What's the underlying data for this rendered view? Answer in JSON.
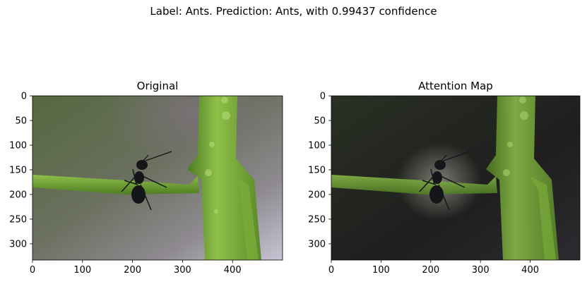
{
  "suptitle": "Label: Ants. Prediction: Ants, with 0.99437 confidence",
  "chart_data": [
    {
      "type": "image",
      "title": "Original",
      "image_width": 500,
      "image_height": 333,
      "xlim": [
        0,
        500
      ],
      "ylim": [
        333,
        0
      ],
      "xticks": [
        0,
        100,
        200,
        300,
        400
      ],
      "yticks": [
        0,
        50,
        100,
        150,
        200,
        250,
        300
      ],
      "subject": "ant on green plant stem",
      "dimmed": false
    },
    {
      "type": "image",
      "title": "Attention Map",
      "image_width": 500,
      "image_height": 333,
      "xlim": [
        0,
        500
      ],
      "ylim": [
        333,
        0
      ],
      "xticks": [
        0,
        100,
        200,
        300,
        400
      ],
      "yticks": [
        0,
        50,
        100,
        150,
        200,
        250,
        300
      ],
      "subject": "ant on green plant stem",
      "dimmed": true
    }
  ]
}
